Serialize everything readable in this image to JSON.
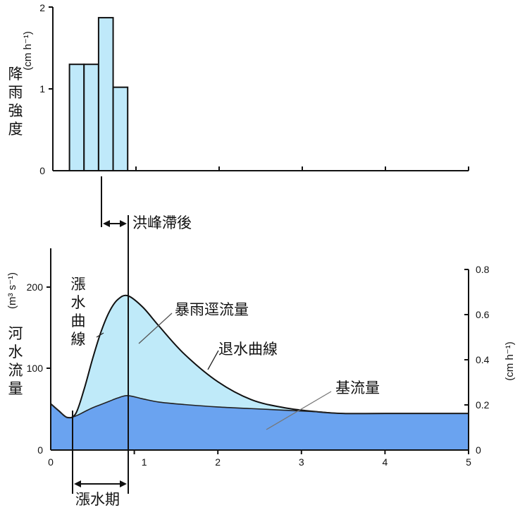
{
  "chart_data": [
    {
      "type": "bar",
      "x": [
        0.2,
        0.375,
        0.55,
        0.725
      ],
      "bar_width": 0.175,
      "values": [
        1.3,
        1.3,
        1.87,
        1.02
      ],
      "ylabel": "降雨強度",
      "yunit": "(cm h⁻¹)",
      "ylim": [
        0,
        2
      ],
      "xlim": [
        0,
        5
      ],
      "yticks": [
        "0",
        "1",
        "2"
      ],
      "xticks": [
        1,
        2,
        3,
        4,
        5
      ],
      "colors": {
        "fill": "#bfe9fa",
        "stroke": "#111111"
      }
    },
    {
      "type": "area",
      "title": "",
      "x": [
        0,
        0.1,
        0.2,
        0.3,
        0.4,
        0.5,
        0.6,
        0.7,
        0.8,
        0.92,
        1.1,
        1.3,
        1.6,
        2.0,
        2.4,
        2.8,
        3.2,
        3.5,
        4.0,
        5.0
      ],
      "series": [
        {
          "name": "暴雨逕流量",
          "values": [
            57,
            48,
            40,
            45,
            75,
            112,
            145,
            170,
            185,
            190,
            176,
            152,
            118,
            84,
            62,
            52,
            47,
            45,
            45,
            45
          ]
        },
        {
          "name": "基流量",
          "values": [
            57,
            48,
            40,
            42,
            47,
            52,
            56,
            60,
            64,
            67,
            63,
            59,
            56,
            53,
            51,
            49,
            47,
            45,
            45,
            45
          ]
        }
      ],
      "ylabel": "河水流量",
      "yunit": "(m³ s⁻¹)",
      "ylim": [
        0,
        250
      ],
      "yticks": [
        "0",
        "100",
        "200"
      ],
      "xlim": [
        0,
        5
      ],
      "xticks": [
        "0",
        "1",
        "2",
        "3",
        "4",
        "5"
      ],
      "y2unit": "(cm h⁻¹)",
      "y2lim": [
        0,
        0.8
      ],
      "y2ticks": [
        "0",
        "0.2",
        "0.4",
        "0.6",
        "0.8"
      ],
      "colors": {
        "quickflow": "#bfeaf9",
        "baseflow": "#6aa3f0",
        "line": "#111111"
      }
    }
  ],
  "annotations": {
    "lag": "洪峰滯後",
    "rising_limb": "漲水曲線",
    "storm_runoff": "暴雨逕流量",
    "recession_limb": "退水曲線",
    "baseflow": "基流量",
    "rising_period": "漲水期"
  }
}
